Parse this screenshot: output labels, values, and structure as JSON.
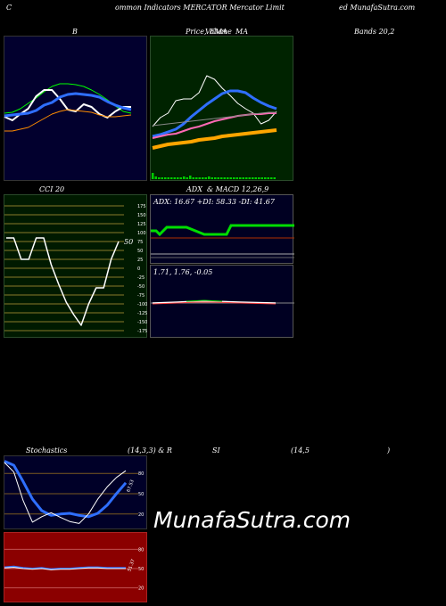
{
  "header": {
    "left": "C",
    "middle": "ommon  Indicators MERCATOR Mercator Limit",
    "right": "ed MunafaSutra.com"
  },
  "titles": {
    "bollinger": "B",
    "price_left": "Price,",
    "price_mid1": "Volume",
    "price_mid2": "EMA",
    "price_right": "MA",
    "bands": "Bands 20,2",
    "cci": "CCI 20",
    "adx_left": "ADX",
    "adx_right": "& MACD 12,26,9",
    "stoch_left": "Stochastics",
    "stoch_mid": "(14,3,3) & R",
    "rsi_mid": "SI",
    "rsi_params": "(14,5",
    "rsi_close": ")"
  },
  "watermark": "MunafaSutra.com",
  "colors": {
    "bollinger_bg": "#02002e",
    "price_bg": "#002300",
    "cci_bg": "#001a00",
    "adx_bg": "#000022",
    "stoch_bg": "#000028",
    "rsi_bg": "#8b0000"
  },
  "chart_data": [
    {
      "type": "line",
      "name": "bollinger",
      "series": [
        {
          "color": "#00ff00",
          "values": [
            126,
            125,
            121,
            115,
            109,
            102,
            96,
            93,
            93,
            94,
            96,
            100,
            105,
            111,
            118,
            124,
            126
          ]
        },
        {
          "color": "#ffffff",
          "values": [
            130,
            134,
            127,
            121,
            107,
            100,
            100,
            110,
            122,
            124,
            116,
            119,
            127,
            131,
            124,
            119,
            119
          ]
        },
        {
          "color": "#2f6fff",
          "values": [
            129,
            128,
            127,
            126,
            123,
            117,
            114,
            108,
            105,
            104,
            105,
            106,
            108,
            113,
            117,
            120,
            122
          ]
        },
        {
          "color": "#ff8c00",
          "values": [
            146,
            146,
            144,
            142,
            137,
            132,
            127,
            124,
            122,
            123,
            124,
            125,
            128,
            130,
            130,
            129,
            128
          ]
        }
      ]
    },
    {
      "type": "line",
      "name": "price-volume-ema",
      "series": [
        {
          "color": "#ffffff",
          "values": [
            141,
            131,
            126,
            112,
            110,
            110,
            103,
            84,
            88,
            98,
            106,
            115,
            121,
            126,
            138,
            134,
            124
          ]
        },
        {
          "color": "#2f6fff",
          "values": [
            152,
            150,
            147,
            144,
            138,
            130,
            123,
            116,
            110,
            104,
            101,
            101,
            103,
            109,
            114,
            118,
            121
          ]
        },
        {
          "color": "#ff69b4",
          "values": [
            154,
            152,
            150,
            149,
            146,
            143,
            141,
            138,
            135,
            133,
            131,
            129,
            128,
            127,
            127,
            126,
            126
          ]
        },
        {
          "color": "#ffa500",
          "values": [
            165,
            163,
            161,
            160,
            159,
            158,
            156,
            155,
            154,
            152,
            151,
            150,
            149,
            148,
            147,
            146,
            145
          ]
        },
        {
          "color": "#888888",
          "values": [
            140,
            139,
            138,
            137,
            136,
            135,
            134,
            133,
            132,
            131,
            130,
            129,
            128,
            127,
            126,
            125,
            125
          ]
        }
      ]
    },
    {
      "type": "line",
      "name": "cci",
      "yticks": [
        175,
        150,
        125,
        100,
        75,
        50,
        25,
        0,
        -25,
        -50,
        -75,
        -100,
        -125,
        -150,
        -175
      ],
      "value_label": "50",
      "values": [
        85,
        85,
        25,
        25,
        85,
        85,
        10,
        -45,
        -95,
        -130,
        -160,
        -100,
        -55,
        -55,
        25,
        75
      ]
    },
    {
      "type": "line",
      "name": "adx",
      "label": "ADX: 16.67 +DI: 58.33 -DI: 41.67",
      "adx": 16.67,
      "plus_di": 58.33,
      "minus_di": 41.67
    },
    {
      "type": "line",
      "name": "macd",
      "label": "1.71,  1.76,  -0.05",
      "macd": 1.71,
      "signal": 1.76,
      "histogram": -0.05
    },
    {
      "type": "line",
      "name": "stochastics",
      "yticks": [
        80,
        50,
        20
      ],
      "value_label": "67.53",
      "series": [
        {
          "color": "#2f6fff",
          "values": [
            98,
            92,
            68,
            42,
            25,
            18,
            20,
            21,
            18,
            16,
            21,
            33,
            50,
            66
          ]
        },
        {
          "color": "#ffffff",
          "values": [
            96,
            82,
            40,
            8,
            16,
            22,
            15,
            9,
            6,
            20,
            42,
            60,
            74,
            84
          ]
        }
      ]
    },
    {
      "type": "line",
      "name": "rsi",
      "yticks": [
        80,
        50,
        20
      ],
      "value_label": "51.37",
      "values": [
        52,
        53,
        51,
        50,
        51,
        49,
        50,
        50,
        51,
        52,
        52,
        51,
        51,
        51
      ]
    }
  ]
}
